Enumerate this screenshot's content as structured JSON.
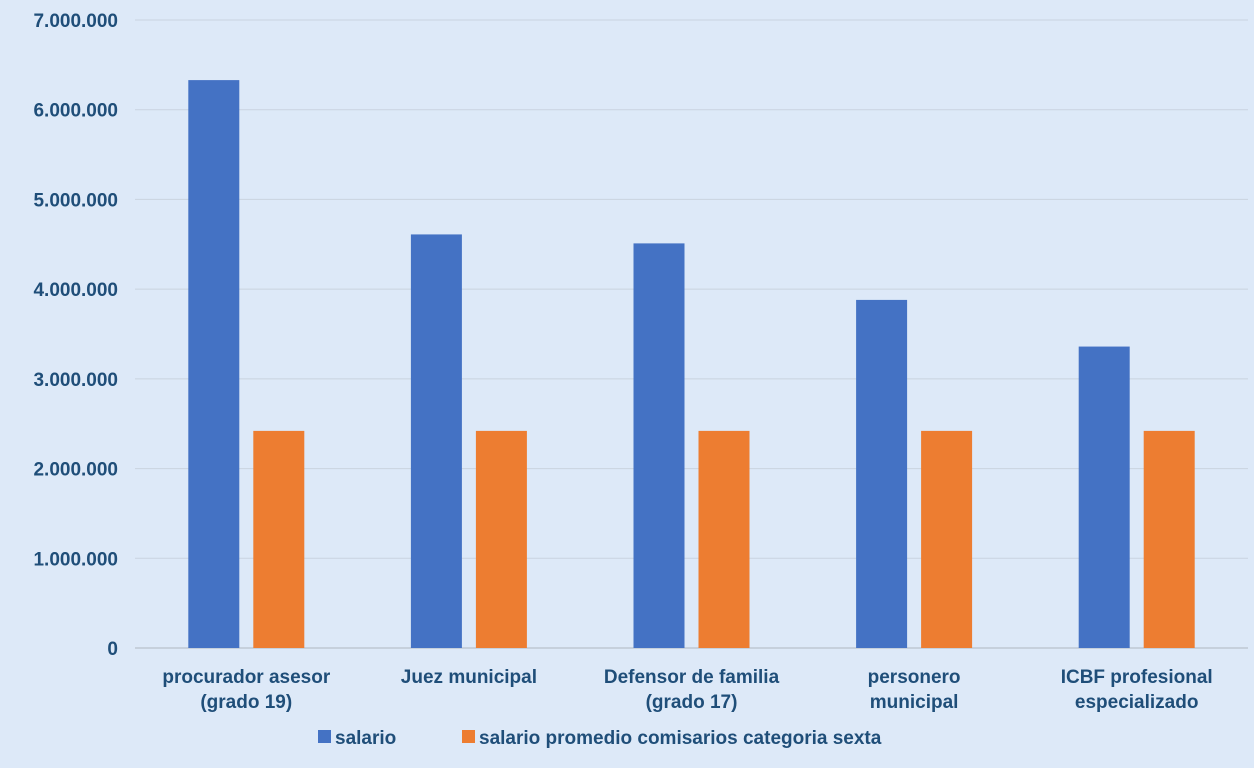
{
  "chart_data": {
    "type": "bar",
    "categories": [
      [
        "procurador asesor",
        "(grado 19)"
      ],
      [
        "Juez municipal"
      ],
      [
        "Defensor de familia",
        "(grado 17)"
      ],
      [
        "personero",
        "municipal"
      ],
      [
        "ICBF profesional",
        "especializado"
      ]
    ],
    "series": [
      {
        "name": "salario",
        "color": "#4472c4",
        "values": [
          6330000,
          4610000,
          4510000,
          3880000,
          3360000
        ]
      },
      {
        "name": "salario promedio comisarios categoria sexta",
        "color": "#ed7d31",
        "values": [
          2420000,
          2420000,
          2420000,
          2420000,
          2420000
        ]
      }
    ],
    "yticks": [
      "0",
      "1.000.000",
      "2.000.000",
      "3.000.000",
      "4.000.000",
      "5.000.000",
      "6.000.000",
      "7.000.000"
    ],
    "ylim": [
      0,
      7000000
    ],
    "grid": true,
    "legend": "bottom",
    "gridline_color": "#c9d3df",
    "axis_color": "#bfc8d3"
  }
}
